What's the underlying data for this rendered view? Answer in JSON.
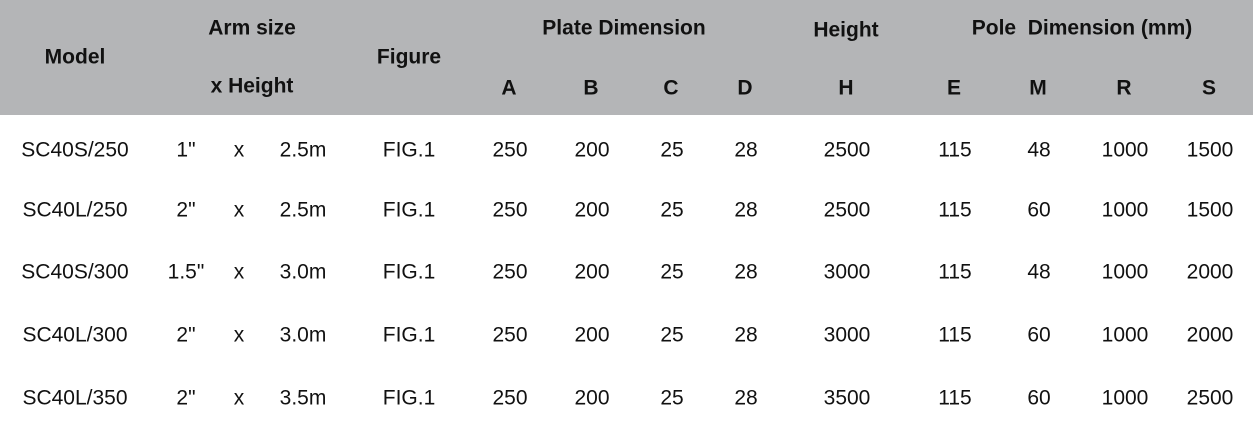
{
  "header": {
    "model": "Model",
    "arm_size": "Arm size",
    "x_height": "x Height",
    "figure": "Figure",
    "plate_dimension": "Plate Dimension",
    "height": "Height",
    "pole_dimension": "Pole  Dimension (mm)",
    "sub": [
      "A",
      "B",
      "C",
      "D",
      "H",
      "E",
      "M",
      "R",
      "S"
    ]
  },
  "table": {
    "rows": [
      [
        "SC40S/250",
        "1\"",
        "x",
        "2.5m",
        "FIG.1",
        250,
        200,
        25,
        28,
        2500,
        115,
        48,
        1000,
        1500
      ],
      [
        "SC40L/250",
        "2\"",
        "x",
        "2.5m",
        "FIG.1",
        250,
        200,
        25,
        28,
        2500,
        115,
        60,
        1000,
        1500
      ],
      [
        "SC40S/300",
        "1.5\"",
        "x",
        "3.0m",
        "FIG.1",
        250,
        200,
        25,
        28,
        3000,
        115,
        48,
        1000,
        2000
      ],
      [
        "SC40L/300",
        "2\"",
        "x",
        "3.0m",
        "FIG.1",
        250,
        200,
        25,
        28,
        3000,
        115,
        60,
        1000,
        2000
      ],
      [
        "SC40L/350",
        "2\"",
        "x",
        "3.5m",
        "FIG.1",
        250,
        200,
        25,
        28,
        3500,
        115,
        60,
        1000,
        2500
      ]
    ]
  }
}
